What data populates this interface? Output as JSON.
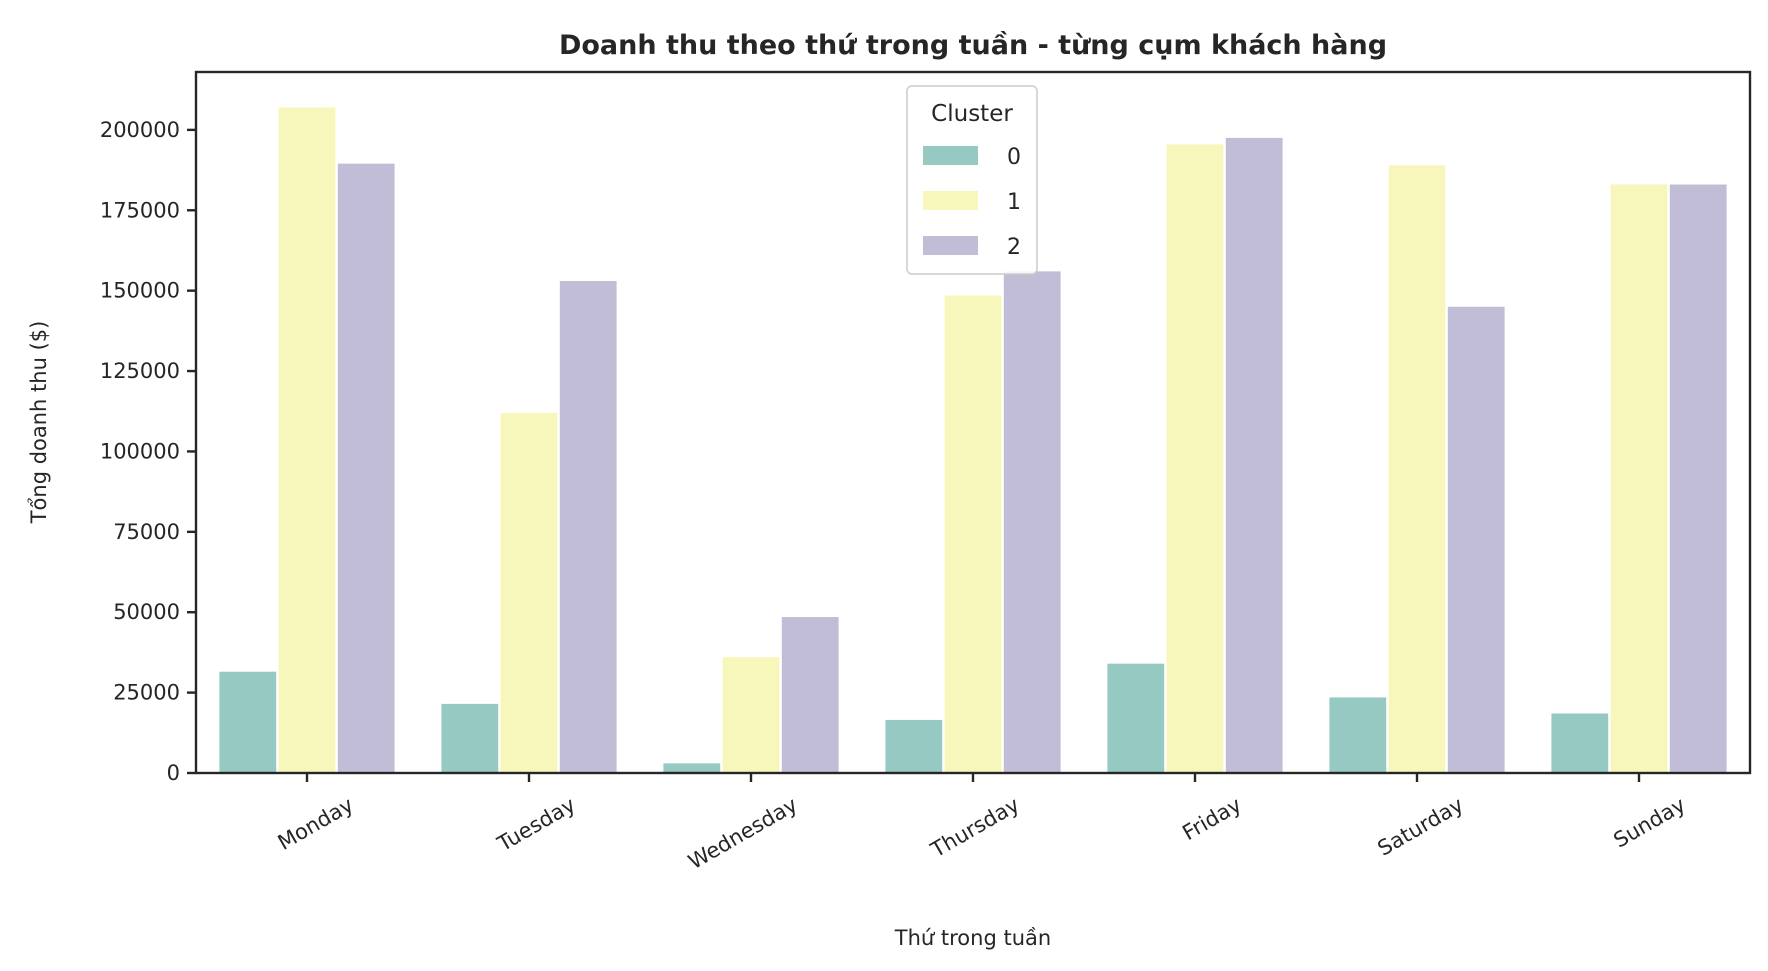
{
  "chart_data": {
    "type": "bar",
    "title": "Doanh thu theo thứ trong tuần - từng cụm khách hàng",
    "xlabel": "Thứ trong tuần",
    "ylabel": "Tổng doanh thu ($)",
    "categories": [
      "Monday",
      "Tuesday",
      "Wednesday",
      "Thursday",
      "Friday",
      "Saturday",
      "Sunday"
    ],
    "ylim": [
      0,
      218000
    ],
    "yticks": [
      0,
      25000,
      50000,
      75000,
      100000,
      125000,
      150000,
      175000,
      200000
    ],
    "legend": {
      "title": "Cluster",
      "placement": "top-center"
    },
    "grid": false,
    "series": [
      {
        "name": "0",
        "color": "#96c9c1",
        "values": [
          31500,
          21500,
          3000,
          16500,
          34000,
          23500,
          18500
        ]
      },
      {
        "name": "1",
        "color": "#f7f6bb",
        "values": [
          207000,
          112000,
          36000,
          148500,
          195500,
          189000,
          183000
        ]
      },
      {
        "name": "2",
        "color": "#c2bdd7",
        "values": [
          189500,
          153000,
          48500,
          156000,
          197500,
          145000,
          183000
        ]
      }
    ]
  }
}
